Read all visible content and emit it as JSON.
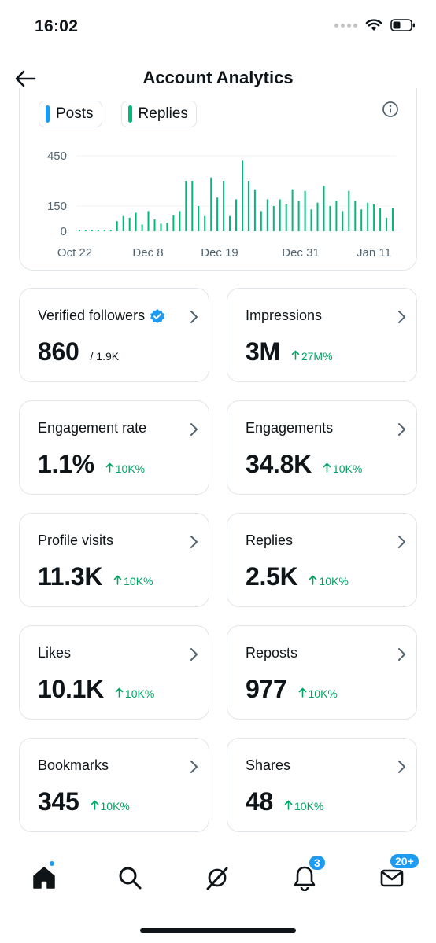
{
  "status_bar": {
    "time": "16:02"
  },
  "header": {
    "title": "Account Analytics"
  },
  "chart": {
    "legend": [
      {
        "label": "Posts",
        "color": "#1d9bf0"
      },
      {
        "label": "Replies",
        "color": "#00ba7c"
      }
    ]
  },
  "chart_data": {
    "type": "bar",
    "xlabels": [
      "Oct 22",
      "Dec 8",
      "Dec 19",
      "Dec 31",
      "Jan 11"
    ],
    "yticks": [
      0,
      150,
      450
    ],
    "ylim": [
      0,
      480
    ],
    "series": [
      {
        "name": "Replies",
        "color": "#00ba7c",
        "values": [
          2,
          1,
          3,
          2,
          4,
          2,
          60,
          90,
          80,
          110,
          40,
          120,
          70,
          45,
          50,
          95,
          120,
          300,
          300,
          150,
          90,
          320,
          200,
          300,
          90,
          190,
          420,
          300,
          250,
          120,
          190,
          150,
          190,
          160,
          250,
          180,
          240,
          130,
          170,
          270,
          150,
          180,
          120,
          240,
          180,
          130,
          170,
          160,
          140,
          80,
          140
        ]
      }
    ]
  },
  "cards": [
    {
      "label": "Verified followers",
      "verified": true,
      "value": "860",
      "sub": "/ 1.9K",
      "delta": ""
    },
    {
      "label": "Impressions",
      "verified": false,
      "value": "3M",
      "sub": "",
      "delta": "27M%"
    },
    {
      "label": "Engagement rate",
      "verified": false,
      "value": "1.1%",
      "sub": "",
      "delta": "10K%"
    },
    {
      "label": "Engagements",
      "verified": false,
      "value": "34.8K",
      "sub": "",
      "delta": "10K%"
    },
    {
      "label": "Profile visits",
      "verified": false,
      "value": "11.3K",
      "sub": "",
      "delta": "10K%"
    },
    {
      "label": "Replies",
      "verified": false,
      "value": "2.5K",
      "sub": "",
      "delta": "10K%"
    },
    {
      "label": "Likes",
      "verified": false,
      "value": "10.1K",
      "sub": "",
      "delta": "10K%"
    },
    {
      "label": "Reposts",
      "verified": false,
      "value": "977",
      "sub": "",
      "delta": "10K%"
    },
    {
      "label": "Bookmarks",
      "verified": false,
      "value": "345",
      "sub": "",
      "delta": "10K%"
    },
    {
      "label": "Shares",
      "verified": false,
      "value": "48",
      "sub": "",
      "delta": "10K%"
    }
  ],
  "tabbar": {
    "notifications_badge": "3",
    "messages_badge": "20+",
    "accent_color": "#1d9bf0"
  }
}
